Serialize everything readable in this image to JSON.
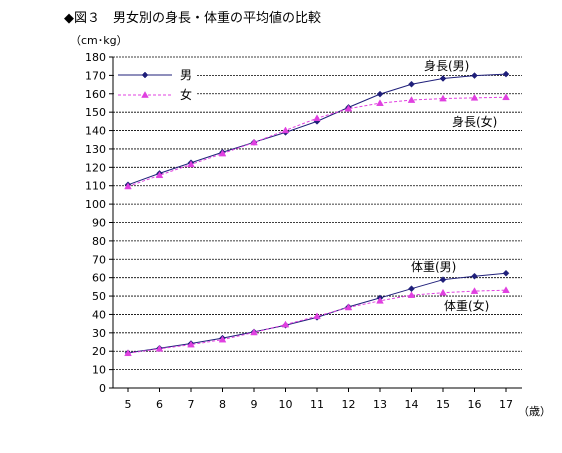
{
  "chart_data": {
    "type": "line",
    "title": "◆図３　男女別の身長・体重の平均値の比較",
    "ylabel": "（cm･kg）",
    "xlabel": "（歳）",
    "x": [
      5,
      6,
      7,
      8,
      9,
      10,
      11,
      12,
      13,
      14,
      15,
      16,
      17
    ],
    "xlim": [
      5,
      17
    ],
    "ylim": [
      0,
      180
    ],
    "ytick_step": 10,
    "grid": true,
    "legend": {
      "placement": "top-left",
      "entries": [
        "男",
        "女"
      ]
    },
    "series": [
      {
        "name": "身長(男)",
        "group": "男",
        "color": "#1f1f7a",
        "marker": "diamond",
        "values": [
          110.5,
          116.7,
          122.5,
          128.2,
          133.6,
          139.0,
          145.0,
          152.6,
          159.8,
          165.2,
          168.3,
          169.9,
          170.7
        ]
      },
      {
        "name": "身長(女)",
        "group": "女",
        "color": "#e040e0",
        "marker": "triangle",
        "values": [
          109.6,
          115.7,
          121.6,
          127.5,
          133.5,
          140.1,
          146.7,
          151.9,
          154.9,
          156.6,
          157.4,
          157.8,
          158.1
        ]
      },
      {
        "name": "体重(男)",
        "group": "男",
        "color": "#1f1f7a",
        "marker": "diamond",
        "values": [
          19.1,
          21.6,
          24.2,
          27.1,
          30.5,
          34.1,
          38.4,
          44.1,
          49.0,
          54.0,
          58.9,
          60.8,
          62.4
        ]
      },
      {
        "name": "体重(女)",
        "group": "女",
        "color": "#e040e0",
        "marker": "triangle",
        "values": [
          18.9,
          21.3,
          23.6,
          26.3,
          30.2,
          34.5,
          39.0,
          43.8,
          47.4,
          50.5,
          51.8,
          52.7,
          53.2
        ]
      }
    ],
    "annotations": [
      {
        "text": "身長(男)",
        "series": "身長(男)"
      },
      {
        "text": "身長(女)",
        "series": "身長(女)"
      },
      {
        "text": "体重(男)",
        "series": "体重(男)"
      },
      {
        "text": "体重(女)",
        "series": "体重(女)"
      }
    ]
  }
}
